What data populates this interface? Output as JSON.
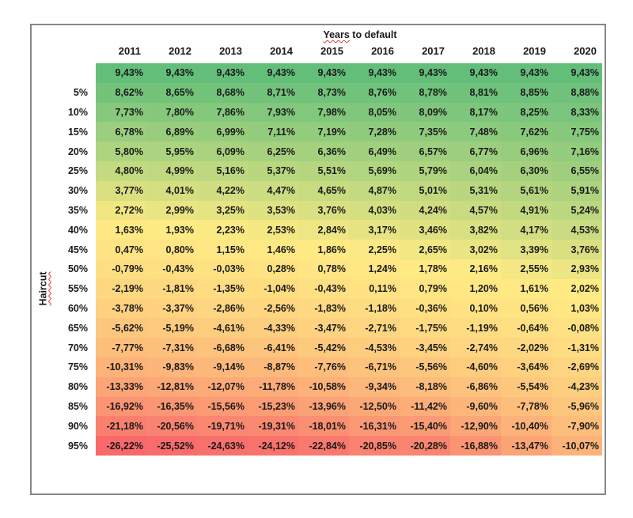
{
  "header": {
    "axis_title_word": "Years",
    "axis_title_rest": " to default"
  },
  "left_axis": {
    "title": "Haircut"
  },
  "style": {
    "frame_border_color": "#868686",
    "squiggle_color": "#e03b32",
    "text_color": "#1a1a1a"
  },
  "chart_data": {
    "type": "heatmap",
    "title": "Years to default",
    "xlabel": "Years to default",
    "ylabel": "Haircut",
    "legend_position": "none",
    "grid": false,
    "columns": [
      "2011",
      "2012",
      "2013",
      "2014",
      "2015",
      "2016",
      "2017",
      "2018",
      "2019",
      "2020"
    ],
    "row_labels": [
      "",
      "5%",
      "10%",
      "15%",
      "20%",
      "25%",
      "30%",
      "35%",
      "40%",
      "45%",
      "50%",
      "55%",
      "60%",
      "65%",
      "70%",
      "75%",
      "80%",
      "85%",
      "90%",
      "95%"
    ],
    "values": [
      [
        "9,43%",
        "9,43%",
        "9,43%",
        "9,43%",
        "9,43%",
        "9,43%",
        "9,43%",
        "9,43%",
        "9,43%",
        "9,43%"
      ],
      [
        "8,62%",
        "8,65%",
        "8,68%",
        "8,71%",
        "8,73%",
        "8,76%",
        "8,78%",
        "8,81%",
        "8,85%",
        "8,88%"
      ],
      [
        "7,73%",
        "7,80%",
        "7,86%",
        "7,93%",
        "7,98%",
        "8,05%",
        "8,09%",
        "8,17%",
        "8,25%",
        "8,33%"
      ],
      [
        "6,78%",
        "6,89%",
        "6,99%",
        "7,11%",
        "7,19%",
        "7,28%",
        "7,35%",
        "7,48%",
        "7,62%",
        "7,75%"
      ],
      [
        "5,80%",
        "5,95%",
        "6,09%",
        "6,25%",
        "6,36%",
        "6,49%",
        "6,57%",
        "6,77%",
        "6,96%",
        "7,16%"
      ],
      [
        "4,80%",
        "4,99%",
        "5,16%",
        "5,37%",
        "5,51%",
        "5,69%",
        "5,79%",
        "6,04%",
        "6,30%",
        "6,55%"
      ],
      [
        "3,77%",
        "4,01%",
        "4,22%",
        "4,47%",
        "4,65%",
        "4,87%",
        "5,01%",
        "5,31%",
        "5,61%",
        "5,91%"
      ],
      [
        "2,72%",
        "2,99%",
        "3,25%",
        "3,53%",
        "3,76%",
        "4,03%",
        "4,24%",
        "4,57%",
        "4,91%",
        "5,24%"
      ],
      [
        "1,63%",
        "1,93%",
        "2,23%",
        "2,53%",
        "2,84%",
        "3,17%",
        "3,46%",
        "3,82%",
        "4,17%",
        "4,53%"
      ],
      [
        "0,47%",
        "0,80%",
        "1,15%",
        "1,46%",
        "1,86%",
        "2,25%",
        "2,65%",
        "3,02%",
        "3,39%",
        "3,76%"
      ],
      [
        "-0,79%",
        "-0,43%",
        "-0,03%",
        "0,28%",
        "0,78%",
        "1,24%",
        "1,78%",
        "2,16%",
        "2,55%",
        "2,93%"
      ],
      [
        "-2,19%",
        "-1,81%",
        "-1,35%",
        "-1,04%",
        "-0,43%",
        "0,11%",
        "0,79%",
        "1,20%",
        "1,61%",
        "2,02%"
      ],
      [
        "-3,78%",
        "-3,37%",
        "-2,86%",
        "-2,56%",
        "-1,83%",
        "-1,18%",
        "-0,36%",
        "0,10%",
        "0,56%",
        "1,03%"
      ],
      [
        "-5,62%",
        "-5,19%",
        "-4,61%",
        "-4,33%",
        "-3,47%",
        "-2,71%",
        "-1,75%",
        "-1,19%",
        "-0,64%",
        "-0,08%"
      ],
      [
        "-7,77%",
        "-7,31%",
        "-6,68%",
        "-6,41%",
        "-5,42%",
        "-4,53%",
        "-3,45%",
        "-2,74%",
        "-2,02%",
        "-1,31%"
      ],
      [
        "-10,31%",
        "-9,83%",
        "-9,14%",
        "-8,87%",
        "-7,76%",
        "-6,71%",
        "-5,56%",
        "-4,60%",
        "-3,64%",
        "-2,69%"
      ],
      [
        "-13,33%",
        "-12,81%",
        "-12,07%",
        "-11,78%",
        "-10,58%",
        "-9,34%",
        "-8,18%",
        "-6,86%",
        "-5,54%",
        "-4,23%"
      ],
      [
        "-16,92%",
        "-16,35%",
        "-15,56%",
        "-15,23%",
        "-13,96%",
        "-12,50%",
        "-11,42%",
        "-9,60%",
        "-7,78%",
        "-5,96%"
      ],
      [
        "-21,18%",
        "-20,56%",
        "-19,71%",
        "-19,31%",
        "-18,01%",
        "-16,31%",
        "-15,40%",
        "-12,90%",
        "-10,40%",
        "-7,90%"
      ],
      [
        "-26,22%",
        "-25,52%",
        "-24,63%",
        "-24,12%",
        "-22,84%",
        "-20,85%",
        "-20,28%",
        "-16,88%",
        "-13,47%",
        "-10,07%"
      ]
    ],
    "colorscale": {
      "min": -26.22,
      "mid": 2.0,
      "max": 9.43,
      "min_color": "#F8696B",
      "mid_color": "#FFEB84",
      "max_color": "#63BE7A"
    }
  }
}
